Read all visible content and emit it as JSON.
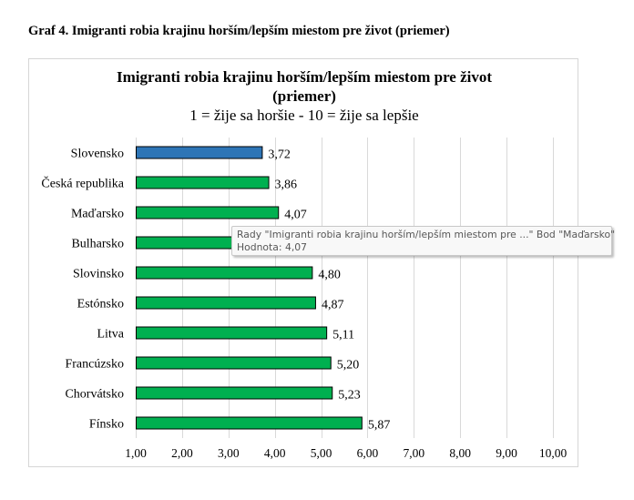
{
  "document": {
    "caption": "Graf 4. Imigranti robia krajinu horším/lepším miestom pre život (priemer)"
  },
  "chart_data": {
    "type": "bar",
    "orientation": "horizontal",
    "title_line1": "Imigranti robia krajinu horším/lepším miestom pre život",
    "title_line2": "(priemer)",
    "subtitle": "1 =  žije sa horšie - 10 = žije sa lepšie",
    "xlabel": "",
    "ylabel": "",
    "xlim": [
      1,
      10
    ],
    "grid": true,
    "categories": [
      "Slovensko",
      "Česká republika",
      "Maďarsko",
      "Bulharsko",
      "Slovinsko",
      "Estónsko",
      "Litva",
      "Francúzsko",
      "Chorvátsko",
      "Fínsko"
    ],
    "values": [
      3.72,
      3.86,
      4.07,
      3.9,
      4.8,
      4.87,
      5.11,
      5.2,
      5.23,
      5.87
    ],
    "value_labels": [
      "3,72",
      "3,86",
      "4,07",
      "",
      "4,80",
      "4,87",
      "5,11",
      "5,20",
      "5,23",
      "5,87"
    ],
    "x_ticks": [
      1,
      2,
      3,
      4,
      5,
      6,
      7,
      8,
      9,
      10
    ],
    "x_tick_labels": [
      "1,00",
      "2,00",
      "3,00",
      "4,00",
      "5,00",
      "6,00",
      "7,00",
      "8,00",
      "9,00",
      "10,00"
    ],
    "highlight_category": "Slovensko",
    "colors": {
      "highlight": "#2e75b6",
      "default": "#00b050",
      "bar_border": "#000000",
      "grid": "#d9d9d9"
    }
  },
  "tooltip": {
    "line1": "Rady \"Imigranti robia krajinu horším/lepším miestom pre ...\" Bod \"Maďarsko\"",
    "line2": "Hodnota: 4,07"
  }
}
